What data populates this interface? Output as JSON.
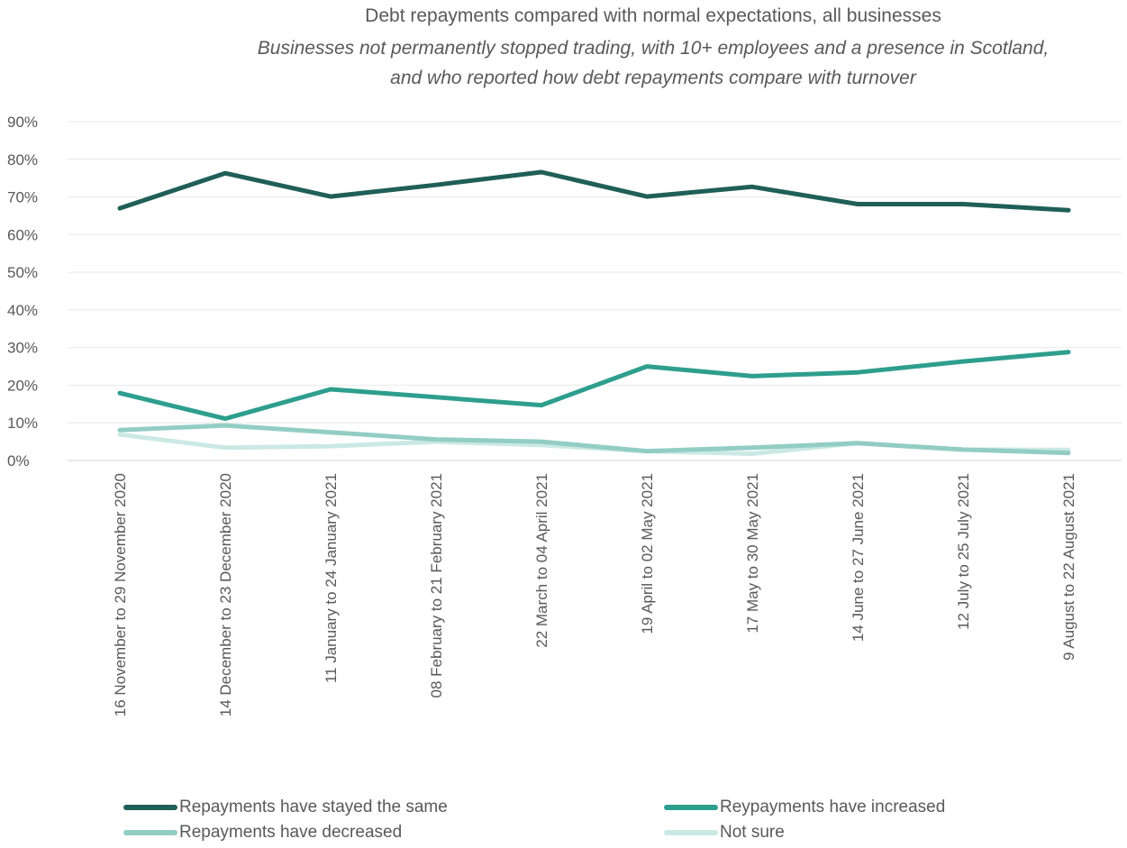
{
  "chart_data": {
    "type": "line",
    "title": "Debt repayments compared with normal expectations, all businesses",
    "subtitle_line1": "Businesses not permanently stopped trading, with 10+ employees and a presence in Scotland,",
    "subtitle_line2": "and who reported how debt repayments compare with turnover",
    "categories": [
      "16 November to 29 November 2020",
      "14 December to 23 December 2020",
      "11 January to 24 January 2021",
      "08 February to 21 February 2021",
      "22 March to 04 April 2021",
      "19 April to 02 May 2021",
      "17 May to 30 May 2021",
      "14 June to 27 June 2021",
      "12 July to 25 July 2021",
      "9 August to 22 August 2021"
    ],
    "y_ticks": [
      "0%",
      "10%",
      "20%",
      "30%",
      "40%",
      "50%",
      "60%",
      "70%",
      "80%",
      "90%"
    ],
    "ylim": [
      0,
      90
    ],
    "grid": true,
    "legend_position": "bottom",
    "series": [
      {
        "name": "Repayments have stayed the same",
        "color": "#1f5f57",
        "values": [
          67,
          76.3,
          70.1,
          73.2,
          76.6,
          70.1,
          72.7,
          68.1,
          68.1,
          66.5
        ]
      },
      {
        "name": "Reypayments have increased",
        "color": "#2e9e8e",
        "values": [
          17.9,
          11.1,
          18.9,
          16.8,
          14.7,
          25,
          22.4,
          23.4,
          26.3,
          28.8
        ]
      },
      {
        "name": "Repayments have decreased",
        "color": "#92cdc4",
        "values": [
          8.1,
          9.3,
          7.5,
          5.6,
          5,
          2.5,
          3.4,
          4.6,
          2.9,
          2
        ]
      },
      {
        "name": "Not sure",
        "color": "#cbe9e4",
        "values": [
          6.9,
          3.4,
          3.8,
          5,
          4.1,
          2.5,
          1.8,
          4.6,
          2.9,
          2.8
        ]
      }
    ]
  }
}
